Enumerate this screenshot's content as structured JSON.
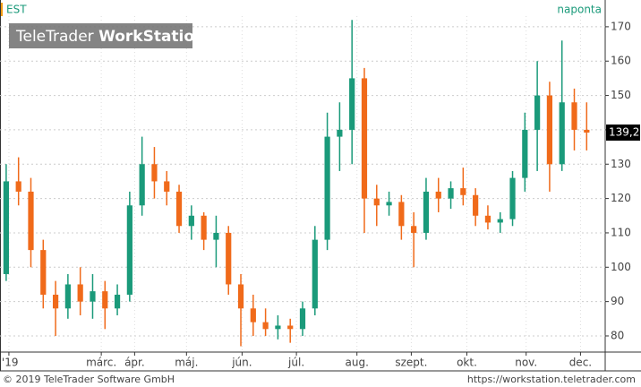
{
  "header": {
    "symbol": "EST",
    "interval": "naponta",
    "logo_light": "TeleTrader",
    "logo_bold": "WorkStation"
  },
  "footer": {
    "copyright": "© 2019 TeleTrader Software GmbH",
    "url": "https://workstation.teletrader.com"
  },
  "chart_data": {
    "type": "candlestick",
    "up_color": "#1a9a7a",
    "down_color": "#f06a1a",
    "grid": true,
    "x": [
      0,
      1,
      2,
      3,
      4,
      5,
      6,
      7,
      8,
      9,
      10,
      11,
      12,
      13,
      14,
      15,
      16,
      17,
      18,
      19,
      20,
      21,
      22,
      23,
      24,
      25,
      26,
      27,
      28,
      29,
      30,
      31,
      32,
      33,
      34,
      35,
      36,
      37,
      38,
      39,
      40,
      41,
      42,
      43,
      44,
      45,
      46,
      47
    ],
    "open": [
      98,
      125,
      122,
      105,
      92,
      88,
      95,
      90,
      93,
      88,
      92,
      118,
      130,
      125,
      122,
      112,
      115,
      108,
      110,
      95,
      88,
      84,
      82,
      83,
      82,
      88,
      108,
      138,
      140,
      155,
      120,
      118,
      119,
      112,
      110,
      122,
      120,
      123,
      121,
      115,
      113,
      114,
      126,
      140,
      150,
      130,
      148,
      140
    ],
    "high": [
      130,
      132,
      126,
      108,
      96,
      98,
      100,
      98,
      96,
      95,
      122,
      138,
      135,
      128,
      124,
      118,
      116,
      115,
      112,
      98,
      92,
      88,
      86,
      85,
      90,
      112,
      145,
      148,
      172,
      158,
      124,
      122,
      121,
      116,
      126,
      126,
      125,
      129,
      123,
      118,
      116,
      128,
      145,
      160,
      154,
      166,
      152,
      148
    ],
    "low": [
      96,
      118,
      100,
      88,
      80,
      85,
      86,
      85,
      82,
      86,
      90,
      115,
      120,
      118,
      110,
      108,
      105,
      100,
      92,
      77,
      80,
      80,
      79,
      78,
      80,
      86,
      105,
      128,
      130,
      110,
      112,
      115,
      108,
      100,
      108,
      116,
      117,
      118,
      112,
      111,
      110,
      112,
      122,
      128,
      122,
      128,
      134,
      134
    ],
    "close": [
      125,
      122,
      105,
      92,
      88,
      95,
      90,
      93,
      88,
      92,
      118,
      130,
      125,
      122,
      112,
      115,
      108,
      110,
      95,
      88,
      84,
      82,
      83,
      82,
      88,
      108,
      138,
      140,
      155,
      120,
      118,
      119,
      112,
      110,
      122,
      120,
      123,
      121,
      115,
      113,
      114,
      126,
      140,
      150,
      130,
      148,
      140,
      139.2
    ],
    "last_label": {
      "value": 139.2,
      "label": "139,2"
    },
    "xlim": [
      -0.5,
      48.5
    ],
    "xticks": [
      {
        "value": 0.22,
        "label": "'19"
      },
      {
        "value": 7.7,
        "label": "márc."
      },
      {
        "value": 10.4,
        "label": "ápr."
      },
      {
        "value": 14.6,
        "label": "máj."
      },
      {
        "value": 19.1,
        "label": "jún."
      },
      {
        "value": 23.5,
        "label": "júl."
      },
      {
        "value": 28.4,
        "label": "aug."
      },
      {
        "value": 32.8,
        "label": "szept."
      },
      {
        "value": 37.3,
        "label": "okt."
      },
      {
        "value": 42.1,
        "label": "nov."
      },
      {
        "value": 46.5,
        "label": "dec."
      }
    ],
    "ylim": [
      75.3,
      173.1
    ],
    "yticks": [
      80,
      90,
      100,
      110,
      120,
      130,
      140,
      150,
      160,
      170
    ]
  }
}
